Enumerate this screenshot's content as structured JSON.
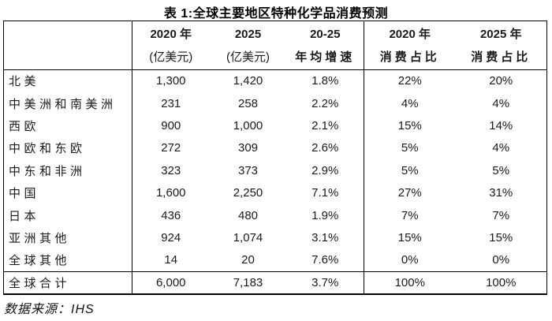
{
  "title": "表 1:全球主要地区特种化学品消费预测",
  "table": {
    "columns": [
      {
        "line1": "",
        "line2": ""
      },
      {
        "line1": "2020 年",
        "line2": "(亿美元)"
      },
      {
        "line1": "2025",
        "line2": "(亿美元)"
      },
      {
        "line1": "20-25",
        "line2": "年均增速"
      },
      {
        "line1": "2020 年",
        "line2": "消费占比"
      },
      {
        "line1": "2025 年",
        "line2": "消费占比"
      }
    ],
    "rows": [
      {
        "region": "北美",
        "y2020": "1,300",
        "y2025": "1,420",
        "cagr": "1.8%",
        "share2020": "22%",
        "share2025": "20%"
      },
      {
        "region": "中美洲和南美洲",
        "y2020": "231",
        "y2025": "258",
        "cagr": "2.2%",
        "share2020": "4%",
        "share2025": "4%"
      },
      {
        "region": "西欧",
        "y2020": "900",
        "y2025": "1,000",
        "cagr": "2.1%",
        "share2020": "15%",
        "share2025": "14%"
      },
      {
        "region": "中欧和东欧",
        "y2020": "272",
        "y2025": "309",
        "cagr": "2.6%",
        "share2020": "5%",
        "share2025": "4%"
      },
      {
        "region": "中东和非洲",
        "y2020": "323",
        "y2025": "373",
        "cagr": "2.9%",
        "share2020": "5%",
        "share2025": "5%"
      },
      {
        "region": "中国",
        "y2020": "1,600",
        "y2025": "2,250",
        "cagr": "7.1%",
        "share2020": "27%",
        "share2025": "31%"
      },
      {
        "region": "日本",
        "y2020": "436",
        "y2025": "480",
        "cagr": "1.9%",
        "share2020": "7%",
        "share2025": "7%"
      },
      {
        "region": "亚洲其他",
        "y2020": "924",
        "y2025": "1,074",
        "cagr": "3.1%",
        "share2020": "15%",
        "share2025": "15%"
      },
      {
        "region": "全球其他",
        "y2020": "14",
        "y2025": "20",
        "cagr": "7.6%",
        "share2020": "0%",
        "share2025": "0%"
      }
    ],
    "total": {
      "region": "全球合计",
      "y2020": "6,000",
      "y2025": "7,183",
      "cagr": "3.7%",
      "share2020": "100%",
      "share2025": "100%"
    }
  },
  "footer": {
    "source": "数据来源：IHS"
  },
  "colors": {
    "text": "#1a1a1a",
    "border": "#000000",
    "background": "#ffffff"
  }
}
